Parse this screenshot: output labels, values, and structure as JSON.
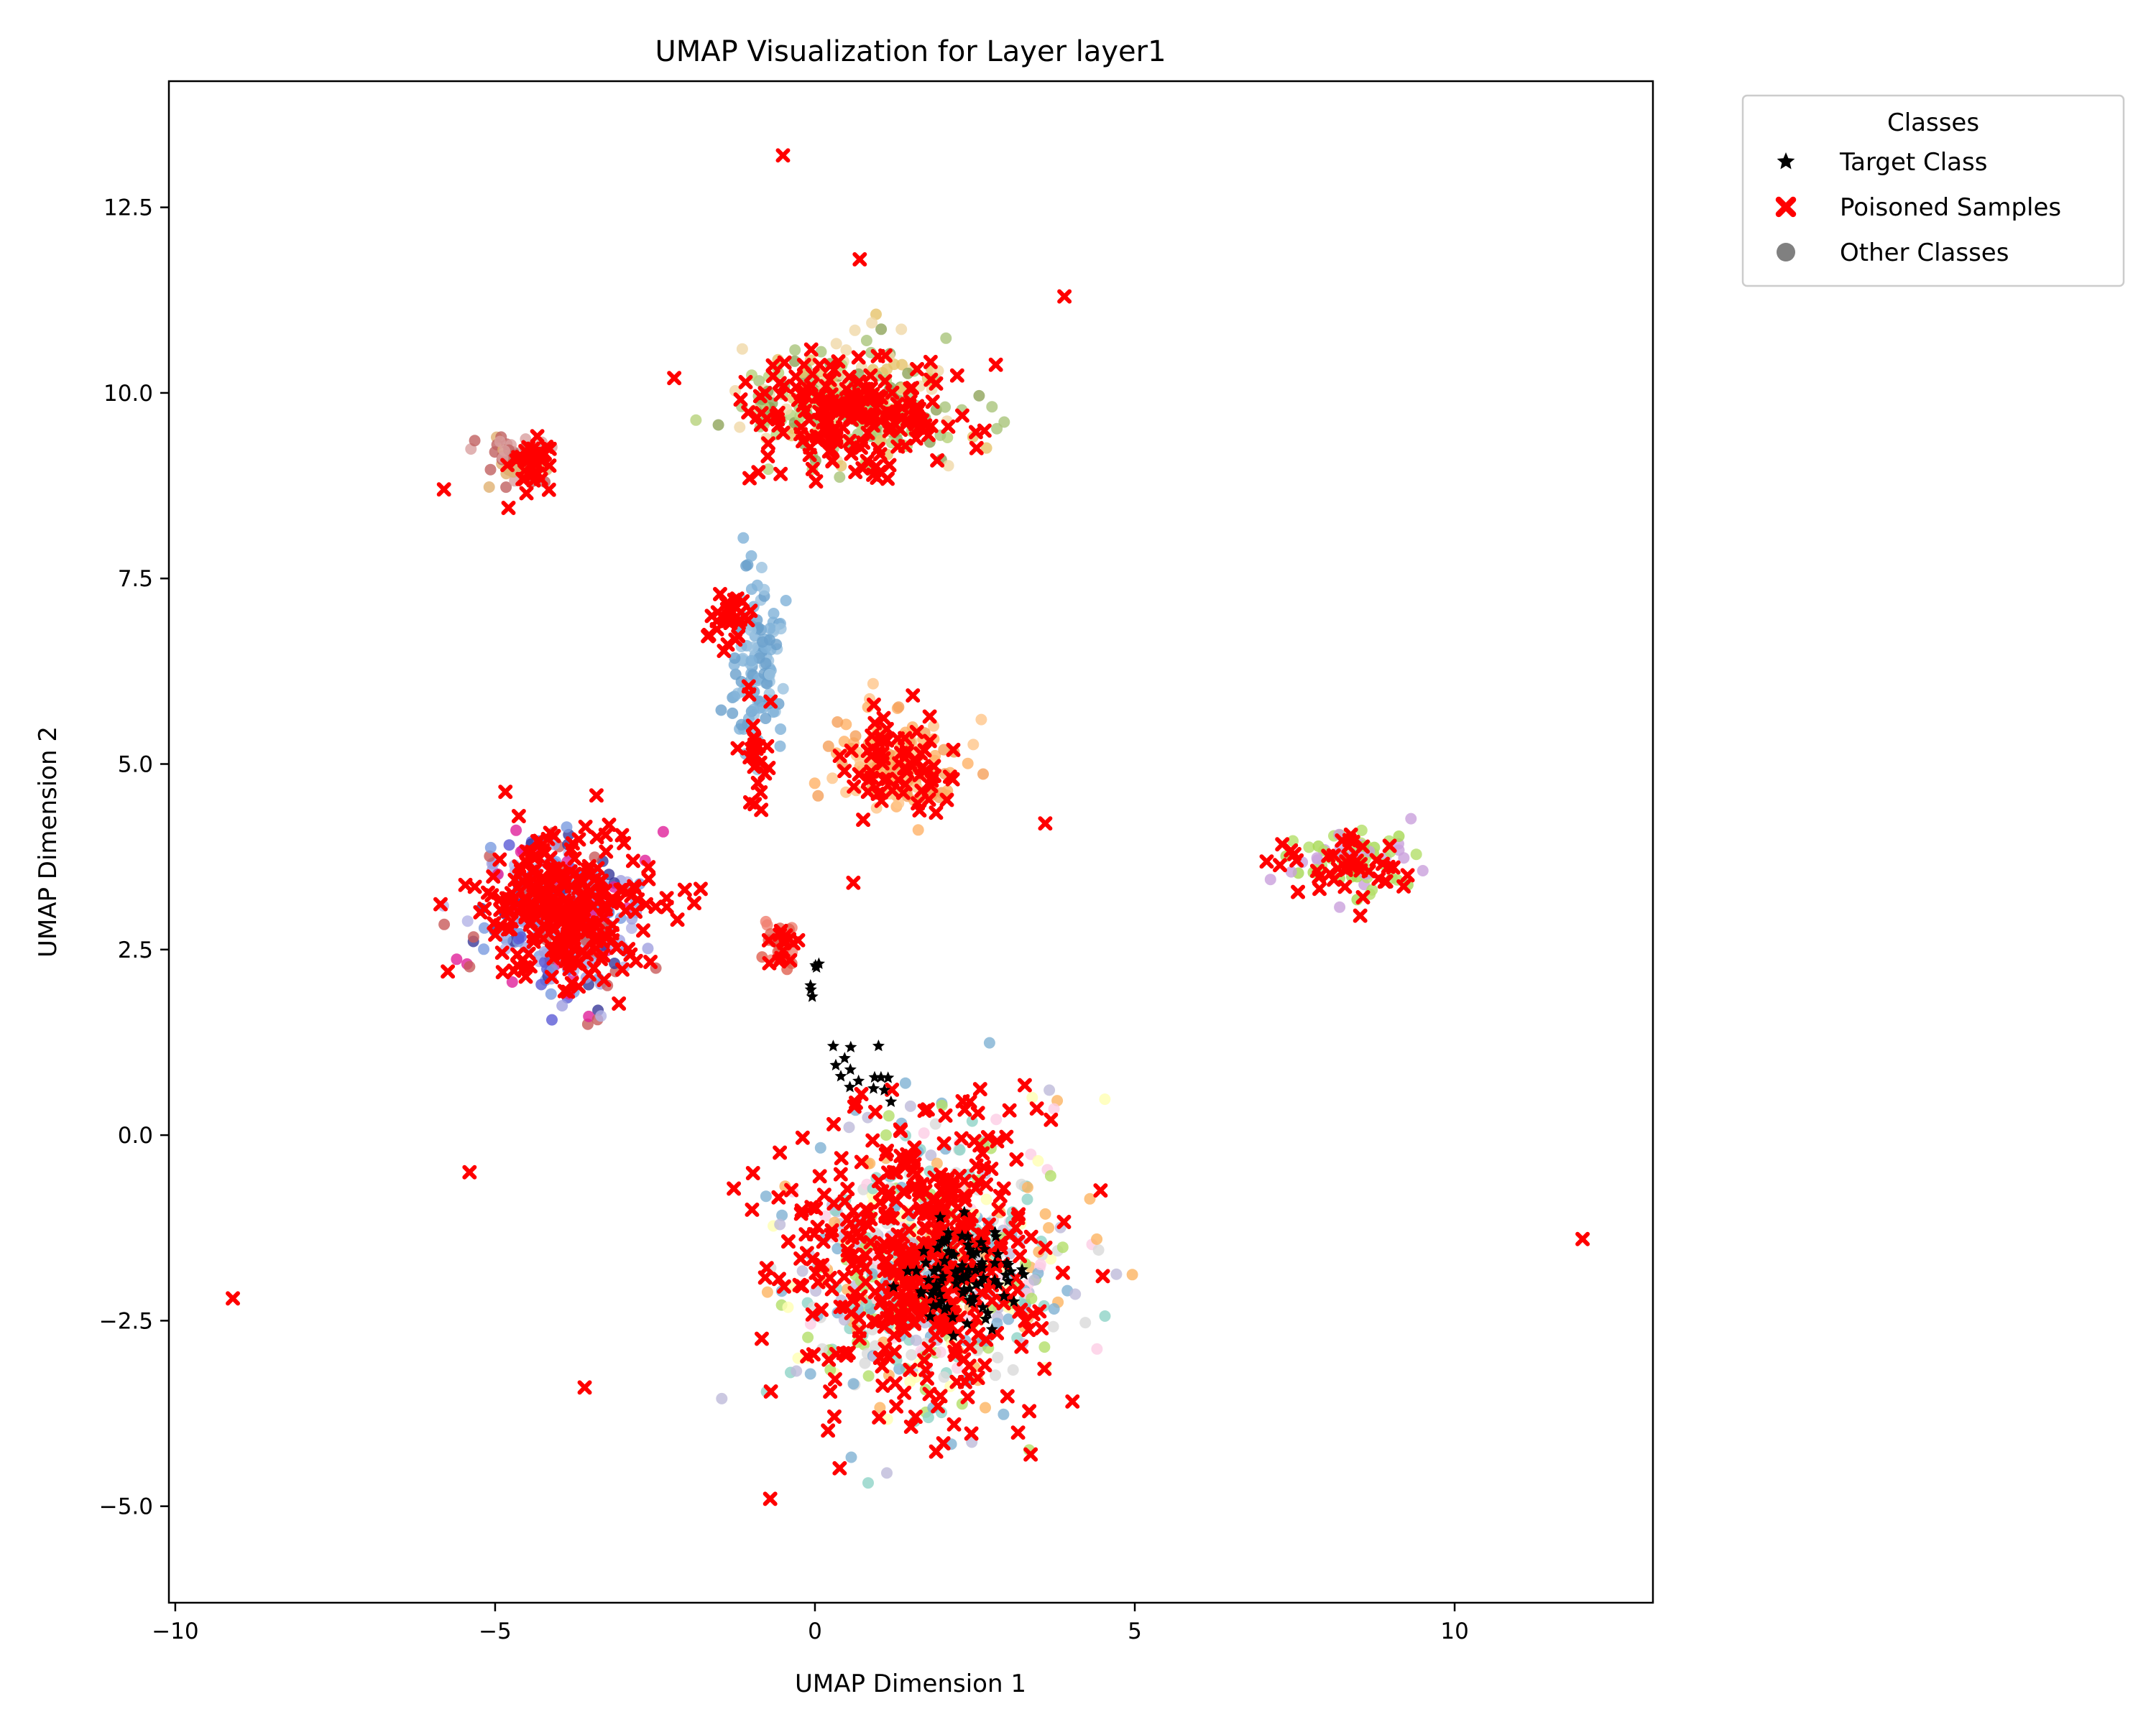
{
  "chart_data": {
    "type": "scatter",
    "title": "UMAP Visualization for Layer layer1",
    "xlabel": "UMAP Dimension 1",
    "ylabel": "UMAP Dimension 2",
    "xlim": [
      -10.1,
      13.1
    ],
    "ylim": [
      -6.3,
      14.2
    ],
    "xticks": [
      -10,
      -5,
      0,
      5,
      10
    ],
    "xtick_labels": [
      "−10",
      "−5",
      "0",
      "5",
      "10"
    ],
    "yticks": [
      -5.0,
      -2.5,
      0.0,
      2.5,
      5.0,
      7.5,
      10.0,
      12.5
    ],
    "ytick_labels": [
      "−5.0",
      "−2.5",
      "0.0",
      "2.5",
      "5.0",
      "7.5",
      "10.0",
      "12.5"
    ],
    "grid": false,
    "legend": {
      "title": "Classes",
      "placement": "outside-upper-right",
      "entries": [
        {
          "label": "Target Class",
          "marker": "star",
          "color": "#000000"
        },
        {
          "label": "Poisoned Samples",
          "marker": "x",
          "color": "#ff0000"
        },
        {
          "label": "Other Classes",
          "marker": "circle",
          "color": "#808080"
        }
      ]
    },
    "series": [
      {
        "kind": "other",
        "marker": "circle",
        "clusters": [
          {
            "center": [
              0.6,
              9.9
            ],
            "spread": [
              1.7,
              0.8
            ],
            "count": 260,
            "colors": [
              "#e6c36a",
              "#b7d27a",
              "#8fa45a",
              "#f0d8a8",
              "#a9c47b"
            ]
          },
          {
            "center": [
              -4.6,
              9.1
            ],
            "spread": [
              0.5,
              0.35
            ],
            "count": 60,
            "colors": [
              "#d9a0a0",
              "#c06060",
              "#e0b070"
            ]
          },
          {
            "center": [
              -0.9,
              6.3
            ],
            "spread": [
              0.45,
              1.0
            ],
            "count": 120,
            "colors": [
              "#7fb2d8",
              "#9ac2e0",
              "#6aa0cc"
            ]
          },
          {
            "center": [
              1.2,
              5.0
            ],
            "spread": [
              0.9,
              0.75
            ],
            "count": 110,
            "colors": [
              "#ffb266",
              "#f5a05a",
              "#ffc58a"
            ]
          },
          {
            "center": [
              -4.0,
              3.0
            ],
            "spread": [
              1.3,
              1.1
            ],
            "count": 300,
            "colors": [
              "#5b5bd6",
              "#3a3a9a",
              "#a0a0e0",
              "#e0219a",
              "#7b9be0",
              "#b3b3e6",
              "#c85a5a"
            ]
          },
          {
            "center": [
              -0.6,
              2.6
            ],
            "spread": [
              0.3,
              0.3
            ],
            "count": 25,
            "colors": [
              "#f08070",
              "#e06050"
            ]
          },
          {
            "center": [
              1.8,
              -1.8
            ],
            "spread": [
              2.2,
              1.9
            ],
            "count": 520,
            "colors": [
              "#8fd3c7",
              "#bebada",
              "#ffffb3",
              "#fccde5",
              "#b3de69",
              "#fdb462",
              "#d9d9d9",
              "#80b1d3"
            ]
          },
          {
            "center": [
              8.4,
              3.7
            ],
            "spread": [
              1.0,
              0.45
            ],
            "count": 70,
            "colors": [
              "#b3de69",
              "#c9a0dc",
              "#a6d854"
            ]
          }
        ]
      },
      {
        "kind": "poisoned",
        "marker": "x",
        "color": "#ff0000",
        "clusters": [
          {
            "center": [
              0.6,
              9.7
            ],
            "spread": [
              1.6,
              0.8
            ],
            "count": 200
          },
          {
            "center": [
              -4.5,
              9.0
            ],
            "spread": [
              0.45,
              0.35
            ],
            "count": 30
          },
          {
            "center": [
              -1.3,
              7.0
            ],
            "spread": [
              0.4,
              0.35
            ],
            "count": 30
          },
          {
            "center": [
              -0.9,
              5.2
            ],
            "spread": [
              0.35,
              0.8
            ],
            "count": 25
          },
          {
            "center": [
              1.3,
              5.0
            ],
            "spread": [
              0.85,
              0.7
            ],
            "count": 70
          },
          {
            "center": [
              -3.9,
              3.0
            ],
            "spread": [
              1.3,
              1.0
            ],
            "count": 280
          },
          {
            "center": [
              -0.5,
              2.5
            ],
            "spread": [
              0.25,
              0.3
            ],
            "count": 15
          },
          {
            "center": [
              1.6,
              -1.6
            ],
            "spread": [
              2.0,
              1.9
            ],
            "count": 450
          },
          {
            "center": [
              8.3,
              3.7
            ],
            "spread": [
              0.95,
              0.45
            ],
            "count": 45
          }
        ],
        "isolated_points": [
          [
            -0.5,
            13.2
          ],
          [
            0.7,
            11.8
          ],
          [
            3.9,
            11.3
          ],
          [
            -2.2,
            10.2
          ],
          [
            -5.8,
            8.7
          ],
          [
            3.6,
            4.2
          ],
          [
            0.6,
            3.4
          ],
          [
            -5.4,
            -0.5
          ],
          [
            -9.1,
            -2.2
          ],
          [
            12.0,
            -1.4
          ],
          [
            4.5,
            -1.9
          ],
          [
            -3.6,
            -3.4
          ],
          [
            -0.7,
            -4.9
          ]
        ]
      },
      {
        "kind": "target",
        "marker": "star",
        "color": "#000000",
        "clusters": [
          {
            "center": [
              2.3,
              -1.9
            ],
            "spread": [
              0.9,
              0.7
            ],
            "count": 90
          },
          {
            "center": [
              0.8,
              0.8
            ],
            "spread": [
              0.6,
              0.4
            ],
            "count": 15
          },
          {
            "center": [
              0.0,
              2.1
            ],
            "spread": [
              0.1,
              0.3
            ],
            "count": 6
          }
        ]
      }
    ]
  }
}
